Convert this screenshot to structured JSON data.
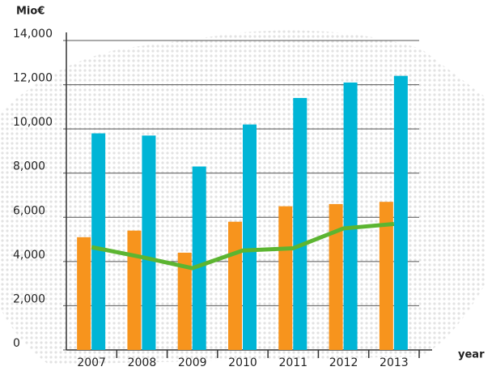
{
  "chart_data": {
    "type": "bar",
    "y_label": "Mio€",
    "x_label": "year",
    "categories": [
      "2007",
      "2008",
      "2009",
      "2010",
      "2011",
      "2012",
      "2013"
    ],
    "series": [
      {
        "color": "#f7941d",
        "values": [
          5100,
          5400,
          4400,
          5800,
          6500,
          6600,
          6700
        ]
      },
      {
        "color": "#00b5d6",
        "values": [
          9800,
          9700,
          8300,
          10200,
          11400,
          12100,
          12400
        ]
      },
      {
        "type": "line",
        "color": "#5cb531",
        "values": [
          4650,
          4200,
          3700,
          4500,
          4600,
          5500,
          5700
        ]
      }
    ],
    "ylim": [
      0,
      14000
    ],
    "yticks": [
      0,
      {
        "value": 2000,
        "label": "2,000"
      },
      {
        "value": 4000,
        "label": "4,000"
      },
      {
        "value": 6000,
        "label": "6,000"
      },
      {
        "value": 8000,
        "label": "8,000"
      },
      {
        "value": 10000,
        "label": "10,000"
      },
      {
        "value": 12000,
        "label": "12,000"
      },
      {
        "value": 14000,
        "label": "14,000"
      }
    ],
    "grid": true
  }
}
